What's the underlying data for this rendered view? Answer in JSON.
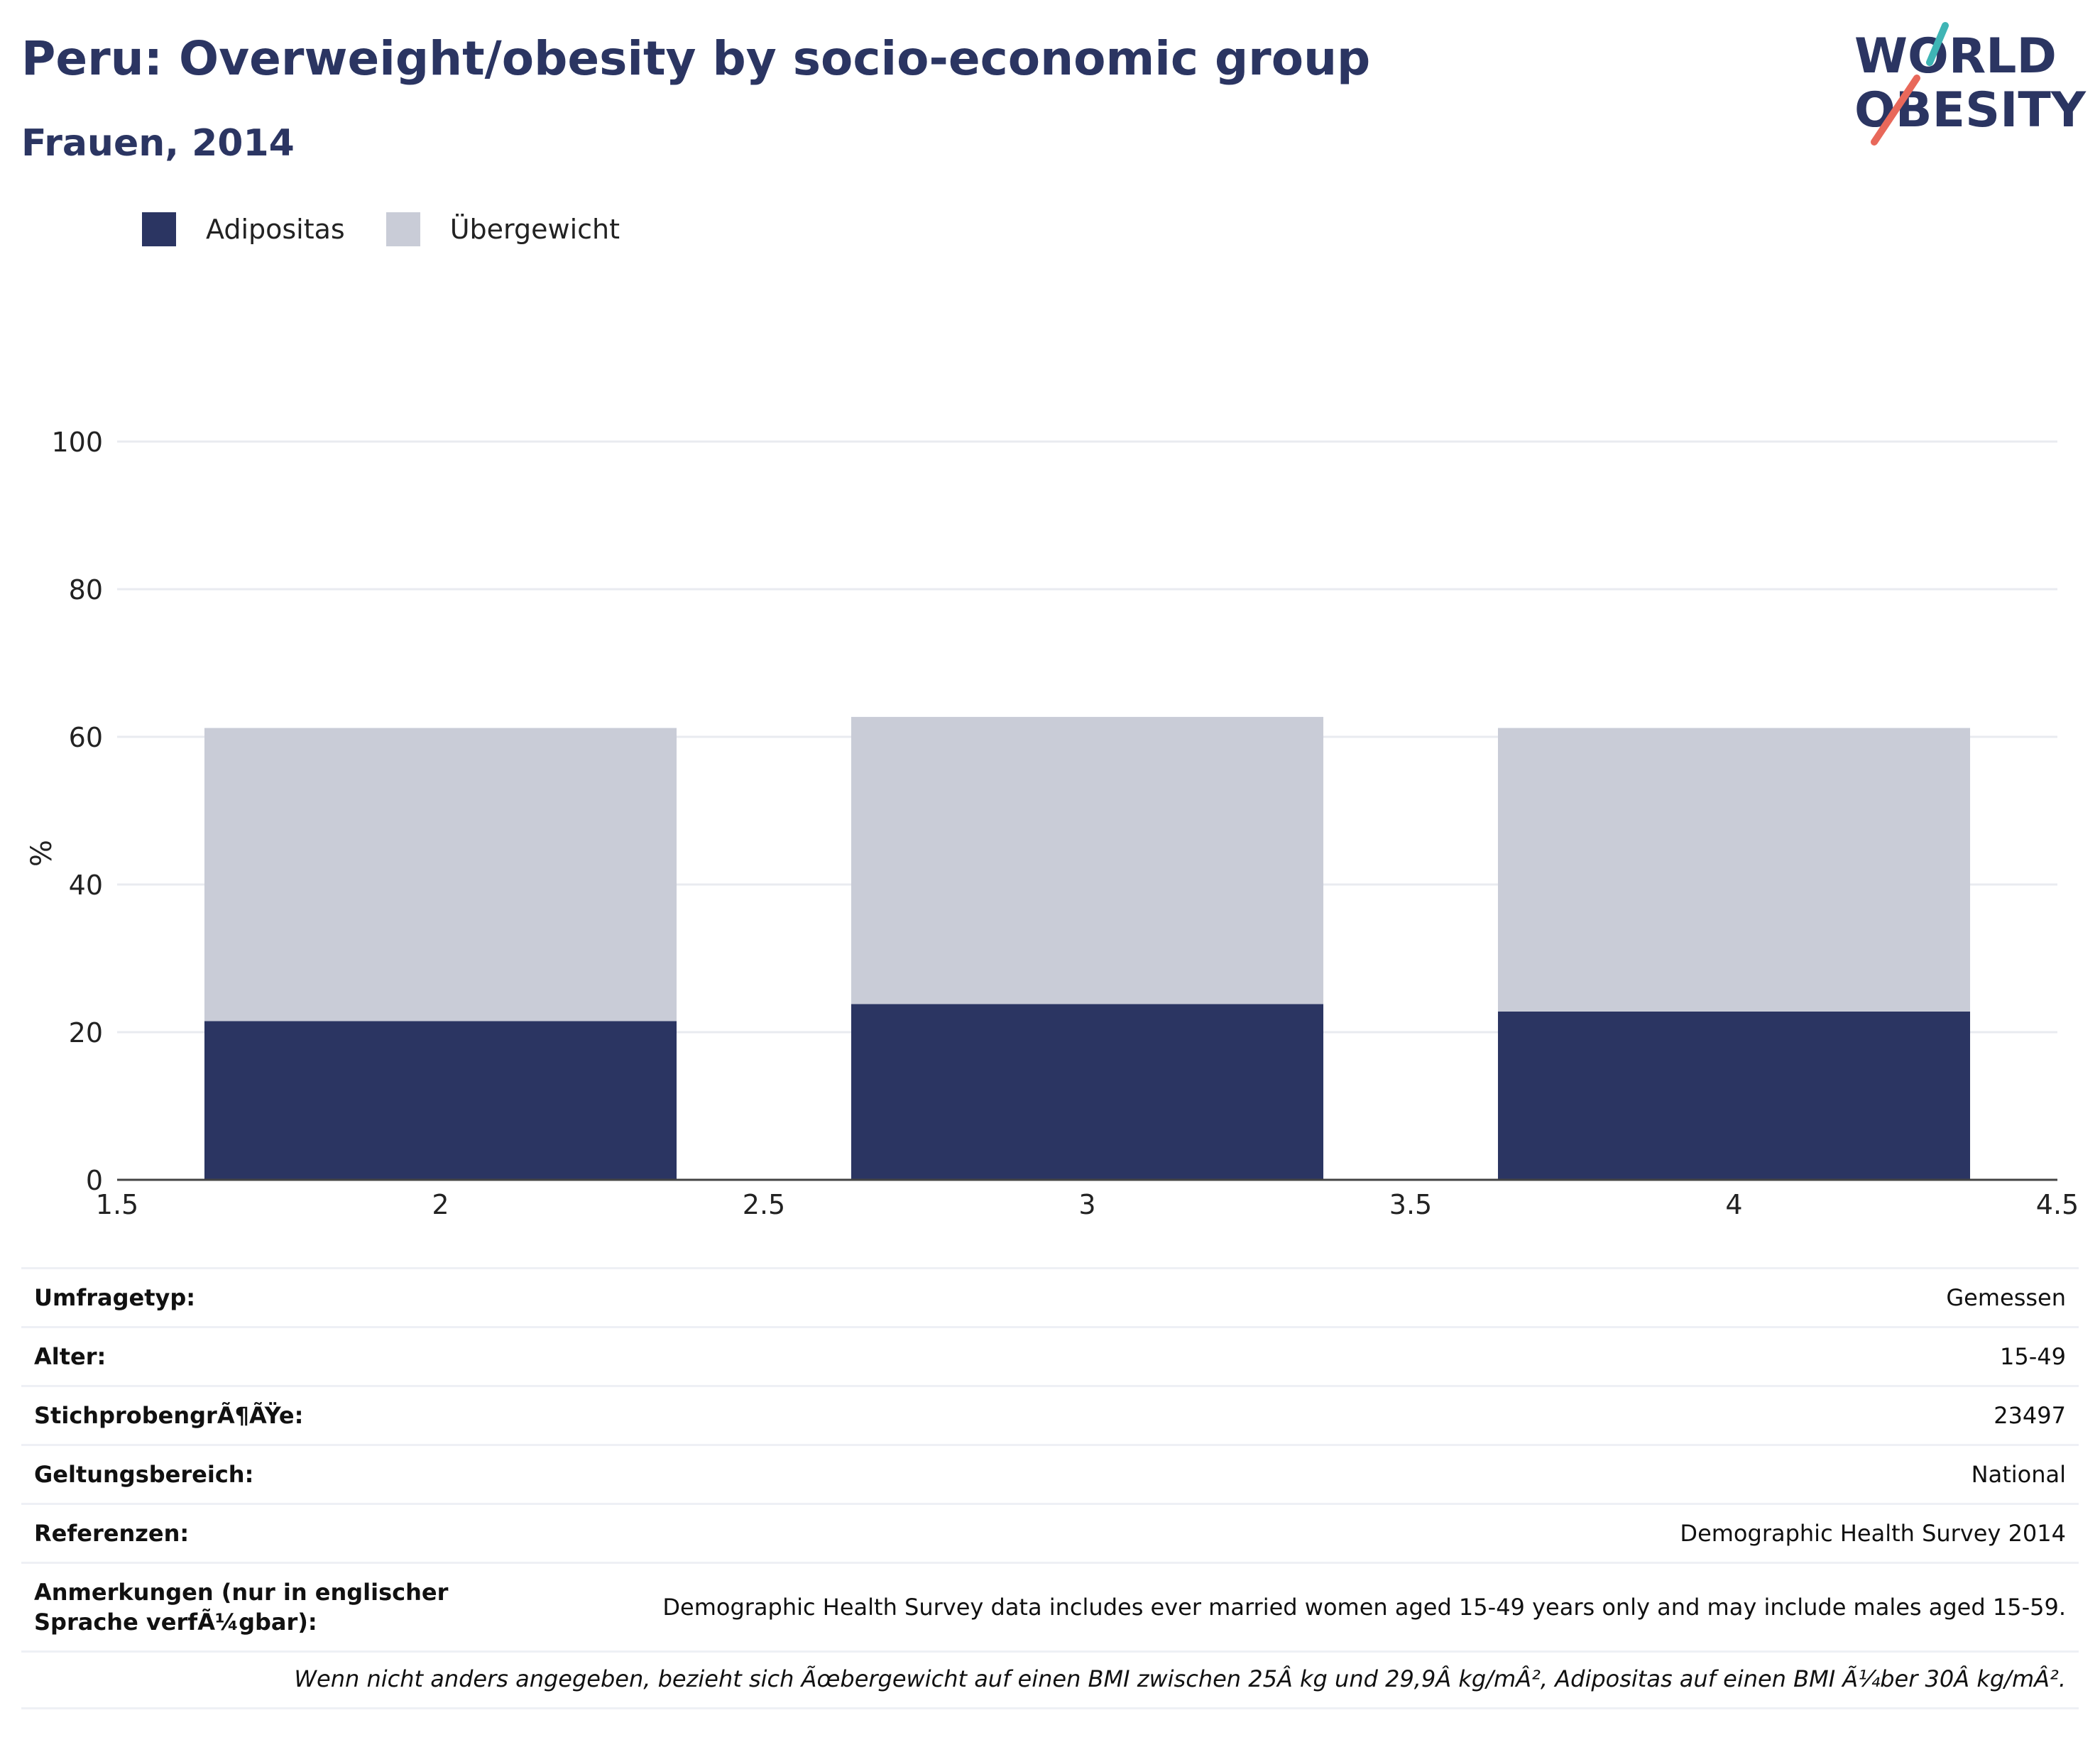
{
  "title": "Peru: Overweight/obesity by socio-economic group",
  "subtitle": "Frauen, 2014",
  "logo": {
    "line1": "WORLD",
    "line2": "OBESITY",
    "colors": {
      "text": "#2b3562",
      "teal": "#3fb5b5",
      "coral": "#e8685a"
    }
  },
  "legend": [
    {
      "label": "Adipositas",
      "color": "#2b3562"
    },
    {
      "label": "Übergewicht",
      "color": "#c9ccd7"
    }
  ],
  "chart_data": {
    "type": "bar",
    "stacked": true,
    "x": [
      2,
      3,
      4
    ],
    "series": [
      {
        "name": "Adipositas",
        "color": "#2b3562",
        "values": [
          21.5,
          23.8,
          22.8
        ]
      },
      {
        "name": "Übergewicht",
        "color": "#c9ccd7",
        "values": [
          39.7,
          38.9,
          38.4
        ]
      }
    ],
    "xlim": [
      1.5,
      4.5
    ],
    "xticks": [
      "1.5",
      "2",
      "2.5",
      "3",
      "3.5",
      "4",
      "4.5"
    ],
    "ylim": [
      0,
      100
    ],
    "yticks": [
      "0",
      "20",
      "40",
      "60",
      "80",
      "100"
    ],
    "ylabel": "%",
    "grid": true,
    "legend_position": "top-left"
  },
  "info": [
    {
      "label": "Umfragetyp:",
      "value": "Gemessen"
    },
    {
      "label": "Alter:",
      "value": "15-49"
    },
    {
      "label": "StichprobengrÃ¶ÃŸe:",
      "value": "23497"
    },
    {
      "label": "Geltungsbereich:",
      "value": "National"
    },
    {
      "label": "Referenzen:",
      "value": "Demographic Health Survey 2014"
    },
    {
      "label": "Anmerkungen (nur in englischer Sprache verfÃ¼gbar):",
      "value": "Demographic Health Survey data includes ever married women aged 15-49 years only and may include males aged 15-59."
    }
  ],
  "footnote": "Wenn nicht anders angegeben, bezieht sich Ãœbergewicht auf einen BMI zwischen 25Â kg und 29,9Â kg/mÂ², Adipositas auf einen BMI Ã¼ber 30Â kg/mÂ²."
}
